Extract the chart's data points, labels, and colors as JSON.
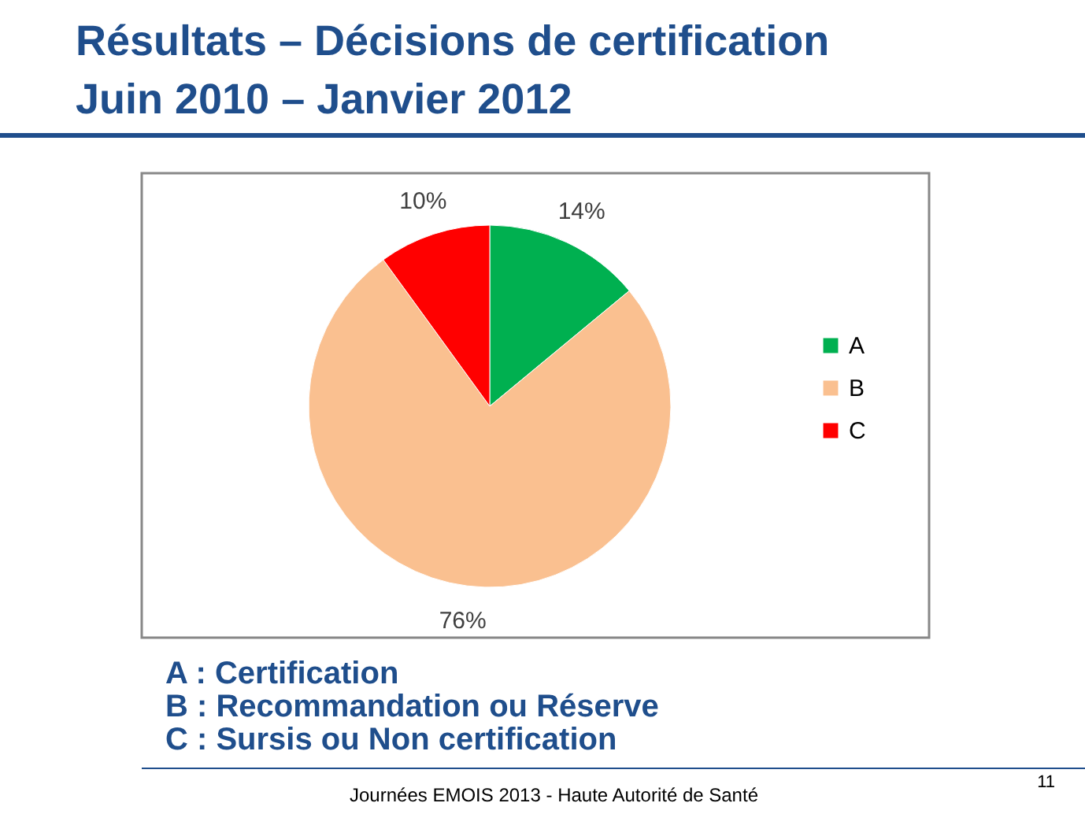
{
  "chart_data": {
    "type": "pie",
    "title": "Résultats – Décisions de certification",
    "subtitle": "Juin 2010 – Janvier 2012",
    "categories": [
      "A",
      "B",
      "C"
    ],
    "values": [
      14,
      76,
      10
    ],
    "colors": [
      "#00b050",
      "#fac090",
      "#ff0000"
    ],
    "value_labels": [
      "14%",
      "76%",
      "10%"
    ],
    "legend": "right",
    "annotations": [
      "A : Certification",
      "B : Recommandation ou Réserve",
      "C : Sursis ou Non certification",
      "Journées EMOIS 2013 - Haute Autorité de Santé",
      "11"
    ]
  }
}
